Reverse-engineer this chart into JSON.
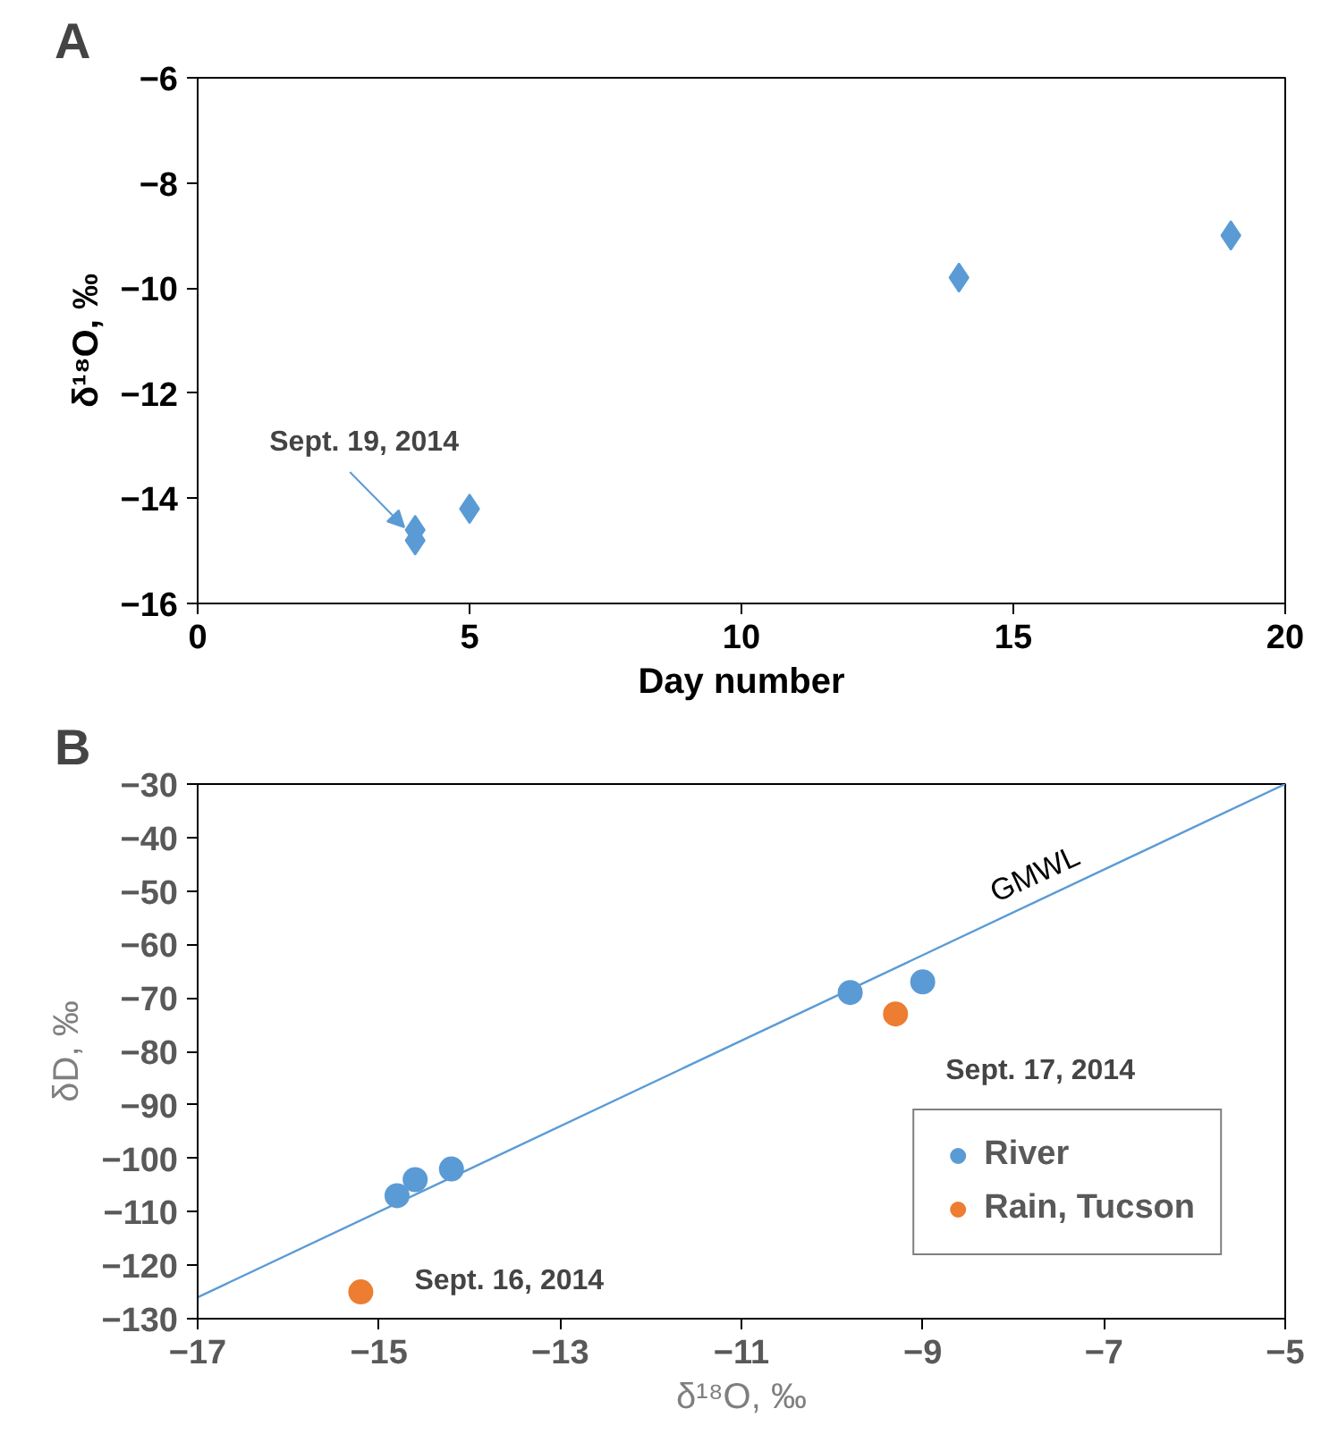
{
  "chart_data": [
    {
      "type": "scatter",
      "title": "A",
      "xlabel": "Day number",
      "ylabel": "δ¹⁸O, ‰",
      "marker": "diamond",
      "grid": false,
      "legend": false,
      "x": [
        4,
        4,
        5,
        14,
        19
      ],
      "series": [
        {
          "color": "#5b9bd5",
          "values": [
            -14.6,
            -14.8,
            -14.2,
            -9.8,
            -9.0
          ]
        }
      ],
      "xlim": [
        0,
        20
      ],
      "xticks": [
        0,
        5,
        10,
        15,
        20
      ],
      "ylim": [
        -16,
        -6
      ],
      "yticks": [
        -16,
        -14,
        -12,
        -10,
        -8,
        -6
      ],
      "annotations": [
        {
          "text": "Sept. 19, 2014",
          "x": 4,
          "y": -14.6
        }
      ]
    },
    {
      "type": "scatter",
      "title": "B",
      "xlabel": "δ¹⁸O, ‰",
      "ylabel": "δD, ‰",
      "marker": "circle",
      "grid": false,
      "legend": "bottom right",
      "series": [
        {
          "name": "River",
          "color": "#5b9bd5",
          "x": [
            -14.8,
            -14.6,
            -14.2,
            -9.8,
            -9.0
          ],
          "values": [
            -107,
            -104,
            -102,
            -69,
            -67
          ]
        },
        {
          "name": "Rain, Tucson",
          "color": "#ed7d31",
          "x": [
            -15.2,
            -9.3
          ],
          "values": [
            -125,
            -73
          ]
        },
        {
          "name": "GMWL",
          "type": "line",
          "marker": "none",
          "color": "#5b9bd5",
          "x": [
            -17,
            -5
          ],
          "values": [
            -126,
            -30
          ]
        }
      ],
      "xlim": [
        -17,
        -5
      ],
      "xticks": [
        -17,
        -15,
        -13,
        -11,
        -9,
        -7,
        -5
      ],
      "ylim": [
        -130,
        -30
      ],
      "yticks": [
        -130,
        -120,
        -110,
        -100,
        -90,
        -80,
        -70,
        -60,
        -50,
        -40,
        -30
      ],
      "annotations": [
        {
          "text": "Sept. 17, 2014",
          "x": -9.3,
          "y": -73
        },
        {
          "text": "Sept. 16, 2014",
          "x": -15.2,
          "y": -125
        }
      ]
    }
  ]
}
